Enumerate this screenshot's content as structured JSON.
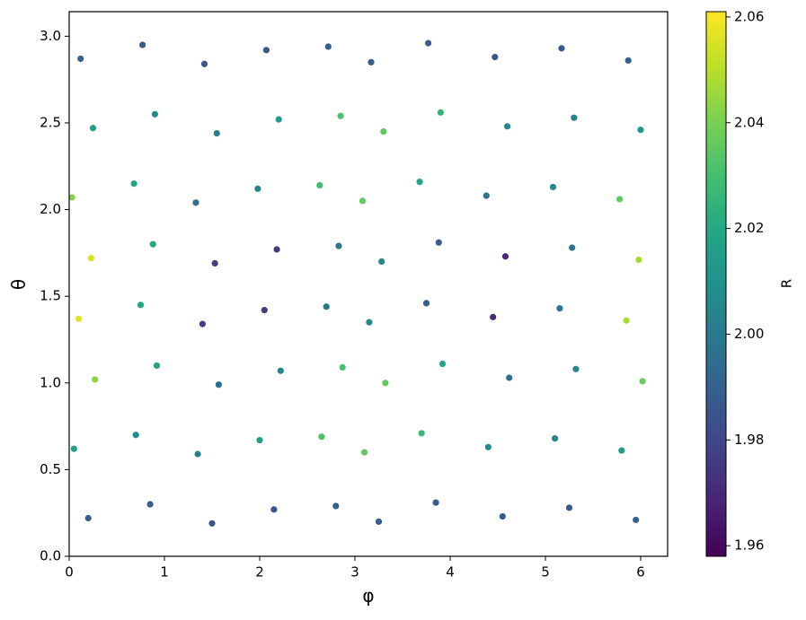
{
  "chart_data": {
    "type": "scatter",
    "xlabel": "φ",
    "ylabel": "θ",
    "colorbar_label": "R",
    "colormap": "viridis",
    "xlim": [
      0,
      6.2832
    ],
    "ylim": [
      0,
      3.1416
    ],
    "clim": [
      1.958,
      2.061
    ],
    "xticks": [
      0,
      1,
      2,
      3,
      4,
      5,
      6
    ],
    "yticks": [
      {
        "value": 0,
        "label": "0.0"
      },
      {
        "value": 0.5,
        "label": "0.5"
      },
      {
        "value": 1,
        "label": "1.0"
      },
      {
        "value": 1.5,
        "label": "1.5"
      },
      {
        "value": 2,
        "label": "2.0"
      },
      {
        "value": 2.5,
        "label": "2.5"
      },
      {
        "value": 3,
        "label": "3.0"
      }
    ],
    "cticks": [
      1.96,
      1.98,
      {
        "value": 2,
        "label": "2.00"
      },
      2.02,
      2.04,
      2.06
    ],
    "x": [
      0.2,
      0.85,
      1.5,
      2.15,
      2.8,
      3.25,
      3.85,
      4.55,
      5.25,
      5.95,
      0.05,
      0.7,
      1.35,
      2,
      2.65,
      3.1,
      3.7,
      4.4,
      5.1,
      5.8,
      0.27,
      0.92,
      1.57,
      2.22,
      2.87,
      3.32,
      3.92,
      4.62,
      5.32,
      6.02,
      0.1,
      0.75,
      1.4,
      2.05,
      2.7,
      3.15,
      3.75,
      4.45,
      5.15,
      5.85,
      0.23,
      0.88,
      1.53,
      2.18,
      2.83,
      3.28,
      3.88,
      4.58,
      5.28,
      5.98,
      0.03,
      0.68,
      1.33,
      1.98,
      2.63,
      3.08,
      3.68,
      4.38,
      5.08,
      5.78,
      0.25,
      0.9,
      1.55,
      2.2,
      2.85,
      3.3,
      3.9,
      4.6,
      5.3,
      6.0,
      0.12,
      0.77,
      1.42,
      2.07,
      2.72,
      3.17,
      3.77,
      4.47,
      5.17,
      5.87
    ],
    "y": [
      0.22,
      0.3,
      0.19,
      0.27,
      0.29,
      0.2,
      0.31,
      0.23,
      0.28,
      0.21,
      0.62,
      0.7,
      0.59,
      0.67,
      0.69,
      0.6,
      0.71,
      0.63,
      0.68,
      0.61,
      1.02,
      1.1,
      0.99,
      1.07,
      1.09,
      1,
      1.11,
      1.03,
      1.08,
      1.01,
      1.37,
      1.45,
      1.34,
      1.42,
      1.44,
      1.35,
      1.46,
      1.38,
      1.43,
      1.36,
      1.72,
      1.8,
      1.69,
      1.77,
      1.79,
      1.7,
      1.81,
      1.73,
      1.78,
      1.71,
      2.07,
      2.15,
      2.04,
      2.12,
      2.14,
      2.05,
      2.16,
      2.08,
      2.13,
      2.06,
      2.47,
      2.55,
      2.44,
      2.52,
      2.54,
      2.45,
      2.56,
      2.48,
      2.53,
      2.46,
      2.87,
      2.95,
      2.84,
      2.92,
      2.94,
      2.85,
      2.96,
      2.88,
      2.93,
      2.86
    ],
    "c": [
      1.99,
      1.988,
      1.986,
      1.987,
      1.989,
      1.989,
      1.988,
      1.986,
      1.987,
      1.99,
      2.016,
      2.008,
      2.003,
      2.015,
      2.032,
      2.036,
      2.026,
      2.007,
      2.004,
      2.014,
      2.043,
      2.019,
      1.996,
      2.004,
      2.03,
      2.036,
      2.02,
      1.996,
      2.006,
      2.037,
      2.056,
      2.02,
      1.978,
      1.975,
      1.999,
      2.006,
      1.989,
      1.971,
      1.999,
      2.048,
      2.055,
      2.019,
      1.977,
      1.974,
      1.998,
      2.005,
      1.988,
      1.97,
      1.998,
      2.047,
      2.042,
      2.018,
      1.995,
      2.004,
      2.03,
      2.036,
      2.02,
      1.996,
      2.006,
      2.036,
      2.015,
      2.007,
      2.002,
      2.014,
      2.031,
      2.035,
      2.025,
      2.006,
      2.003,
      2.013,
      1.99,
      1.988,
      1.986,
      1.987,
      1.989,
      1.989,
      1.988,
      1.986,
      1.987,
      1.99
    ]
  }
}
